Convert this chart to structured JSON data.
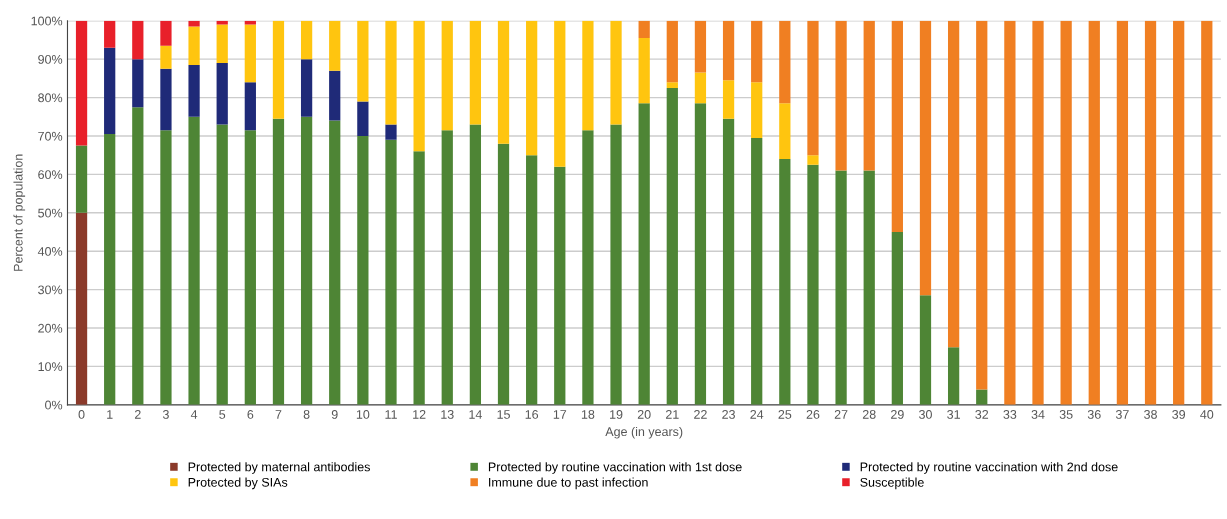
{
  "chart_data": {
    "type": "bar",
    "stacked": true,
    "xlabel": "Age (in years)",
    "ylabel": "Percent of population",
    "categories": [
      "0",
      "1",
      "2",
      "3",
      "4",
      "5",
      "6",
      "7",
      "8",
      "9",
      "10",
      "11",
      "12",
      "13",
      "14",
      "15",
      "16",
      "17",
      "18",
      "19",
      "20",
      "21",
      "22",
      "23",
      "24",
      "25",
      "26",
      "27",
      "28",
      "29",
      "30",
      "31",
      "32",
      "33",
      "34",
      "35",
      "36",
      "37",
      "38",
      "39",
      "40"
    ],
    "series": [
      {
        "name": "Protected by maternal antibodies",
        "color": "#8b3a2a",
        "values": [
          50,
          0,
          0,
          0,
          0,
          0,
          0,
          0,
          0,
          0,
          0,
          0,
          0,
          0,
          0,
          0,
          0,
          0,
          0,
          0,
          0,
          0,
          0,
          0,
          0,
          0,
          0,
          0,
          0,
          0,
          0,
          0,
          0,
          0,
          0,
          0,
          0,
          0,
          0,
          0,
          0
        ]
      },
      {
        "name": "Protected by routine vaccination with 1st dose",
        "color": "#4e8535",
        "values": [
          17.5,
          70.5,
          77.5,
          71.5,
          75,
          73,
          71.5,
          74.5,
          75,
          74,
          70,
          69,
          66,
          71.5,
          73,
          68,
          65,
          62,
          71.5,
          73,
          78.5,
          82.5,
          78.5,
          74.5,
          69.5,
          64,
          62.5,
          61,
          61,
          45,
          28.5,
          15,
          4,
          0,
          0,
          0,
          0,
          0,
          0,
          0,
          0
        ]
      },
      {
        "name": "Protected by routine vaccination with 2nd dose",
        "color": "#1f2a78",
        "values": [
          0,
          22.5,
          12.5,
          16,
          13.5,
          16,
          12.5,
          0,
          15,
          13,
          9,
          4,
          0,
          0,
          0,
          0,
          0,
          0,
          0,
          0,
          0,
          0,
          0,
          0,
          0,
          0,
          0,
          0,
          0,
          0,
          0,
          0,
          0,
          0,
          0,
          0,
          0,
          0,
          0,
          0,
          0
        ]
      },
      {
        "name": "Protected by SIAs",
        "color": "#ffc50f",
        "values": [
          0,
          0,
          0,
          6,
          10,
          10,
          15,
          25.5,
          10,
          13,
          21,
          27,
          34,
          28.5,
          27,
          32,
          35,
          38,
          28.5,
          27,
          17,
          1.5,
          8,
          10,
          14.5,
          14.5,
          2.5,
          0,
          0,
          0,
          0,
          0,
          0,
          0,
          0,
          0,
          0,
          0,
          0,
          0,
          0
        ]
      },
      {
        "name": "Immune due to past infection",
        "color": "#f07f22",
        "values": [
          0,
          0,
          0,
          0,
          0,
          0,
          0,
          0,
          0,
          0,
          0,
          0,
          0,
          0,
          0,
          0,
          0,
          0,
          0,
          0,
          4.5,
          16,
          13.5,
          15.5,
          16,
          21.5,
          35,
          39,
          39,
          55,
          71.5,
          85,
          96,
          100,
          100,
          100,
          100,
          100,
          100,
          100,
          100
        ]
      },
      {
        "name": "Susceptible",
        "color": "#e8202a",
        "values": [
          32.5,
          7,
          10,
          6.5,
          1.5,
          1,
          1,
          0,
          0,
          0,
          0,
          0,
          0,
          0,
          0,
          0,
          0,
          0,
          0,
          0,
          0,
          0,
          0,
          0,
          0,
          0,
          0,
          0,
          0,
          0,
          0,
          0,
          0,
          0,
          0,
          0,
          0,
          0,
          0,
          0,
          0
        ]
      }
    ],
    "ylim": [
      0,
      100
    ],
    "yticks": [
      {
        "value": 0,
        "label": "0%"
      },
      {
        "value": 10,
        "label": "10%"
      },
      {
        "value": 20,
        "label": "20%"
      },
      {
        "value": 30,
        "label": "30%"
      },
      {
        "value": 40,
        "label": "40%"
      },
      {
        "value": 50,
        "label": "50%"
      },
      {
        "value": 60,
        "label": "60%"
      },
      {
        "value": 70,
        "label": "70%"
      },
      {
        "value": 80,
        "label": "80%"
      },
      {
        "value": 90,
        "label": "90%"
      },
      {
        "value": 100,
        "label": "100%"
      }
    ],
    "grid": "y",
    "legend": "bottom"
  }
}
